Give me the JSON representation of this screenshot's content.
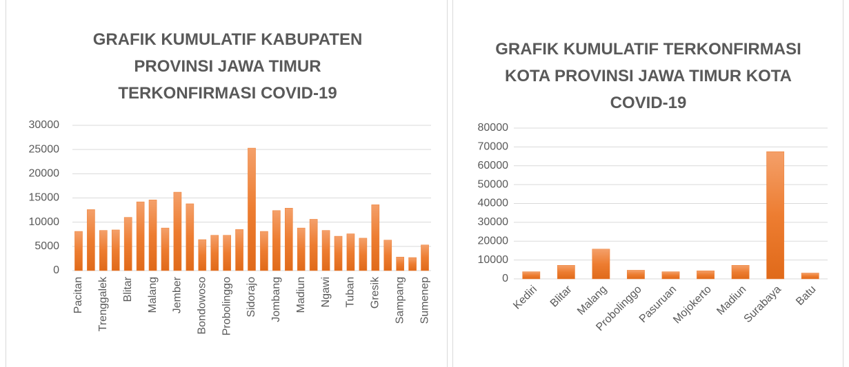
{
  "chart_data": [
    {
      "type": "bar",
      "title": "GRAFIK KUMULATIF KABUPATEN PROVINSI JAWA TIMUR TERKONFIRMASI COVID-19",
      "categories": [
        "Pacitan",
        null,
        "Trenggalek",
        null,
        "Blitar",
        null,
        "Malang",
        null,
        "Jember",
        null,
        "Bondowoso",
        null,
        "Probolinggo",
        null,
        "Sidorajo",
        null,
        "Jombang",
        null,
        "Madiun",
        null,
        "Ngawi",
        null,
        "Tuban",
        null,
        "Gresik",
        null,
        "Sampang",
        null,
        "Sumenep"
      ],
      "values": [
        8100,
        12600,
        8300,
        8400,
        11000,
        14200,
        14600,
        8800,
        16200,
        13800,
        6400,
        7300,
        7300,
        8500,
        25300,
        8100,
        12400,
        12900,
        8800,
        10600,
        8300,
        7100,
        7600,
        6700,
        13600,
        6300,
        2800,
        2700,
        5300
      ],
      "color": "#ed7d31",
      "ylim": [
        0,
        30000
      ],
      "yticks": [
        0,
        5000,
        10000,
        15000,
        20000,
        25000,
        30000
      ],
      "grid": true
    },
    {
      "type": "bar",
      "title": "GRAFIK KUMULATIF TERKONFIRMASI KOTA PROVINSI JAWA TIMUR KOTA COVID-19",
      "categories": [
        "Kediri",
        "Blitar",
        "Malang",
        "Probolinggo",
        "Pasuruan",
        "Mojokerto",
        "Madiun",
        "Surabaya",
        "Batu"
      ],
      "values": [
        3800,
        7200,
        15800,
        4600,
        3800,
        4300,
        7200,
        67500,
        3100
      ],
      "color": "#ed7d31",
      "ylim": [
        0,
        80000
      ],
      "yticks": [
        0,
        10000,
        20000,
        30000,
        40000,
        50000,
        60000,
        70000,
        80000
      ],
      "grid": true
    }
  ]
}
